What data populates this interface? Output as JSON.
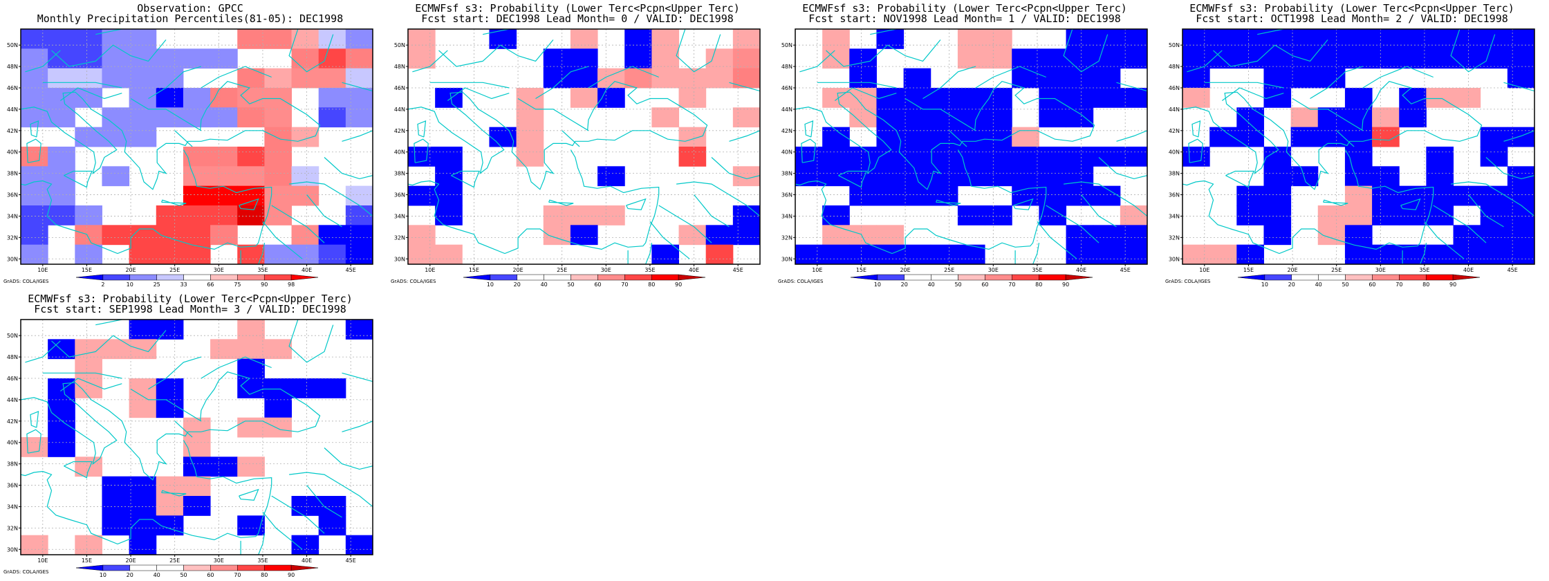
{
  "credit": "GrADS: COLA/IGES",
  "map_grid": {
    "lon_ticks": [
      "10E",
      "15E",
      "20E",
      "25E",
      "30E",
      "35E",
      "40E",
      "45E"
    ],
    "lat_ticks": [
      "30N",
      "32N",
      "34N",
      "36N",
      "38N",
      "40N",
      "42N",
      "44N",
      "46N",
      "48N",
      "50N"
    ],
    "lon_range": [
      7.5,
      47.5
    ],
    "lat_range": [
      29.5,
      51.5
    ],
    "cell_size_deg": [
      2.5,
      2.0
    ],
    "coastline_color": "#00c8c8",
    "gridline_style": "dotted"
  },
  "colorbars": {
    "observation": {
      "labels": [
        "2",
        "10",
        "25",
        "33",
        "66",
        "75",
        "90",
        "98"
      ],
      "colors": [
        "#0000ff",
        "#4646ff",
        "#8c8cff",
        "#c8c8ff",
        "#ffffff",
        "#ffc0c0",
        "#ff8c8c",
        "#ff4646",
        "#ff0000"
      ]
    },
    "probability": {
      "labels": [
        "10",
        "20",
        "40",
        "50",
        "60",
        "70",
        "80",
        "90"
      ],
      "colors": [
        "#0000ff",
        "#4646ff",
        "#ffffff",
        "#ffffff",
        "#ffc0c0",
        "#ff8c8c",
        "#ff4646",
        "#ff0000",
        "#c80000"
      ]
    }
  },
  "panels": [
    {
      "title_line1": "Observation: GPCC",
      "title_line2": "Monthly Precipitation Percentiles(81-05): DEC1998",
      "colorbar": "observation",
      "grid": [
        "22233000ww543",
        "3223333300w7w",
        "34433300w5664",
        "3330313w66033",
        "33033333w6023",
        "003330000w500",
        "w30000ww7w000",
        "330300666w400",
        "3300008886604",
        "22300777m6002",
        "20w7777w00611",
        "3030777073321"
      ],
      "grid_rows_north_to_south": true
    },
    {
      "title_line1": "ECMWFsf s3: Probability (Lower Terc<Pcpn<Upper Terc)",
      "title_line2": "Fcst start: DEC1998  Lead Month= 0 / VALID: DEC1998",
      "colorbar": "probability",
      "grid": [
        "5001005015005",
        "5000011015056",
        "000001156555w",
        "0100505100500",
        "0000500005005",
        "0001500000500",
        "1100500000700",
        "0100000100005",
        "1100000000000",
        "0100055500001",
        "5000051000511",
        "5500000001070"
      ],
      "grid_rows_north_to_south": true
    },
    {
      "title_line1": "ECMWFsf s3: Probability (Lower Terc<Pcpn<Upper Terc)",
      "title_line2": "Fcst start: NOV1998  Lead Month= 1 / VALID: DEC1998",
      "colorbar": "probability",
      "grid": [
        "0501005500111",
        "0510005511111",
        "0010100011110",
        "0551111101111",
        "0051111101100",
        "0101111150000",
        "1111111111111",
        "1111111111100",
        "0011110011110",
        "0100001101005",
        "0555000000111",
        "1111111000111"
      ],
      "grid_rows_north_to_south": true
    },
    {
      "title_line1": "ECMWFsf s3: Probability (Lower Terc<Pcpn<Upper Terc)",
      "title_line2": "Fcst start: OCT1998  Lead Month= 2 / VALID: DEC1998",
      "colorbar": "probability",
      "grid": [
        "1111111111111",
        "1111111111111",
        "1001110000001",
        "5001001015500",
        "0010511510000",
        "0110111700011",
        "1001001001010",
        "0001101101001",
        "0011005111111",
        "0011055111011",
        "0001051000111",
        "5510001111111"
      ],
      "grid_rows_north_to_south": true
    },
    {
      "title_line1": "ECMWFsf s3: Probability (Lower Terc<Pcpn<Upper Terc)",
      "title_line2": "Fcst start: SEP1998  Lead Month= 3 / VALID: DEC1998",
      "colorbar": "probability",
      "grid": [
        "0000110050001",
        "0155500555000",
        "0050000010000",
        "0150510011110",
        "0100510001000",
        "0100005055000",
        "5100005000000",
        "0050001150000",
        "0001155000000",
        "0001151000110",
        "0001110010010",
        "5050100000101"
      ],
      "grid_rows_north_to_south": true
    }
  ]
}
